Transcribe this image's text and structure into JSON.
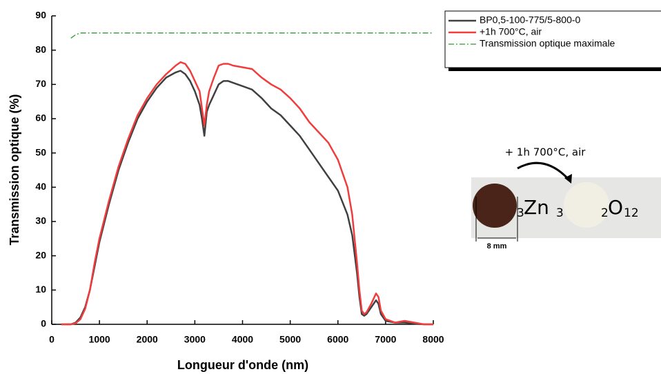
{
  "chart_data": {
    "type": "line",
    "x_label": "Longueur d'onde (nm)",
    "y_label": "Transmission optique (%)",
    "x": [
      200,
      400,
      500,
      600,
      700,
      800,
      900,
      1000,
      1200,
      1400,
      1600,
      1800,
      2000,
      2200,
      2400,
      2600,
      2700,
      2800,
      2900,
      3000,
      3100,
      3150,
      3200,
      3250,
      3300,
      3400,
      3500,
      3600,
      3700,
      3800,
      4000,
      4200,
      4400,
      4600,
      4800,
      5000,
      5200,
      5400,
      5600,
      5800,
      6000,
      6200,
      6300,
      6400,
      6450,
      6500,
      6550,
      6600,
      6700,
      6800,
      6850,
      6900,
      7000,
      7200,
      7400,
      7600,
      7800,
      8000
    ],
    "series": [
      {
        "name": "BP0,5-100-775/5-800-0",
        "color": "#404040",
        "dash": "solid",
        "values": [
          0,
          0,
          0.5,
          2,
          5,
          10,
          17,
          24,
          35,
          45,
          53,
          60,
          65,
          69,
          72,
          73.5,
          74,
          73,
          71,
          68,
          64,
          60,
          55,
          62,
          64,
          67,
          70,
          71,
          71,
          70.5,
          69.5,
          68.5,
          66,
          63,
          61,
          58,
          55,
          51,
          47,
          43,
          39,
          32,
          26,
          15,
          8,
          3,
          2.5,
          3,
          5,
          7,
          6,
          3,
          1,
          0.5,
          0.5,
          0.2,
          0,
          0
        ]
      },
      {
        "name": "+1h 700°C, air",
        "color": "#f03c3c",
        "dash": "solid",
        "values": [
          0,
          0,
          0.3,
          1.5,
          4.5,
          10,
          18,
          25,
          36,
          46,
          54,
          61,
          66,
          70,
          73,
          75.5,
          76.5,
          76,
          74,
          71,
          68,
          63,
          58,
          64,
          68,
          72,
          75.5,
          76,
          76,
          75.5,
          75,
          74.5,
          72,
          70,
          68.5,
          66,
          63,
          59,
          56,
          53,
          48,
          40,
          32,
          18,
          10,
          4,
          3,
          3.5,
          6,
          9,
          8,
          4,
          1.5,
          0.5,
          1,
          0.5,
          0,
          0
        ]
      },
      {
        "name": "Transmission optique maximale",
        "color": "#2a9a2a",
        "dash": "dashdot",
        "values": [
          null,
          83.5,
          84.5,
          85,
          85,
          85,
          85,
          85,
          85,
          85,
          85,
          85,
          85,
          85,
          85,
          85,
          85,
          85,
          85,
          85,
          85,
          85,
          85,
          85,
          85,
          85,
          85,
          85,
          85,
          85,
          85,
          85,
          85,
          85,
          85,
          85,
          85,
          85,
          85,
          85,
          85,
          85,
          85,
          85,
          85,
          85,
          85,
          85,
          85,
          85,
          85,
          85,
          85,
          85,
          85,
          85,
          85,
          85
        ]
      }
    ],
    "xlim": [
      0,
      8000
    ],
    "xticks": [
      0,
      1000,
      2000,
      3000,
      4000,
      5000,
      6000,
      7000,
      8000
    ],
    "ylim": [
      0,
      90
    ],
    "yticks": [
      0,
      10,
      20,
      30,
      40,
      50,
      60,
      70,
      80,
      90
    ],
    "legend": "right",
    "annotations": [
      "+ 1h 700°C, air",
      "8 mm"
    ],
    "formula_fragments": [
      "3",
      "Zn",
      "3",
      "2",
      "O",
      "12"
    ]
  }
}
